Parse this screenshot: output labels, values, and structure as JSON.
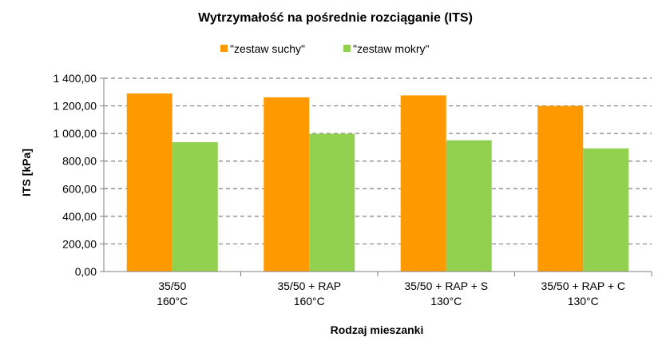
{
  "chart_data": {
    "type": "bar",
    "title": "Wytrzymałość na pośrednie rozciąganie (ITS)",
    "xlabel": "Rodzaj mieszanki",
    "ylabel": "ITS [kPa]",
    "ylim": [
      0,
      1400
    ],
    "yticks": [
      "0,00",
      "200,00",
      "400,00",
      "600,00",
      "800,00",
      "1 000,00",
      "1 200,00",
      "1 400,00"
    ],
    "grid": true,
    "legend": "top",
    "categories": [
      [
        "35/50",
        "160°C"
      ],
      [
        "35/50 + RAP",
        "160°C"
      ],
      [
        "35/50 + RAP + S",
        "130°C"
      ],
      [
        "35/50 + RAP + C",
        "130°C"
      ]
    ],
    "series": [
      {
        "name": "\"zestaw suchy\"",
        "color": "#FF9900",
        "values": [
          1290,
          1262,
          1276,
          1200
        ]
      },
      {
        "name": "\"zestaw mokry\"",
        "color": "#92D050",
        "values": [
          937,
          998,
          951,
          892
        ]
      }
    ]
  }
}
